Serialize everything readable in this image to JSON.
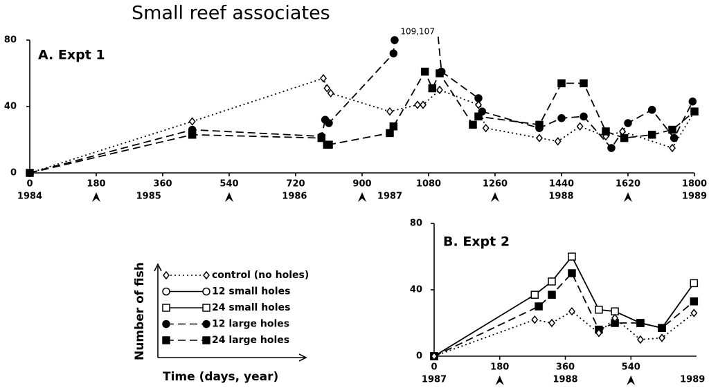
{
  "title": "Small reef associates",
  "chart_data": [
    {
      "type": "line",
      "title": "A. Expt 1",
      "xlim": [
        0,
        1800
      ],
      "ylim": [
        0,
        80
      ],
      "xticks": [
        0,
        180,
        360,
        540,
        720,
        900,
        1080,
        1260,
        1440,
        1620,
        1800
      ],
      "yticks": [
        0,
        40,
        80
      ],
      "year_ticks": [
        {
          "value": 0,
          "label": "1984"
        },
        {
          "value": 322,
          "label": "1985"
        },
        {
          "value": 717,
          "label": "1986"
        },
        {
          "value": 975,
          "label": "1987"
        },
        {
          "value": 1439,
          "label": "1988"
        },
        {
          "value": 1800,
          "label": "1989"
        }
      ],
      "arrows": [
        180,
        540,
        900,
        1260,
        1620
      ],
      "annotation": "109,107",
      "series": [
        {
          "name": "control (no holes)",
          "marker": "diamond-open",
          "dash": "dotted",
          "color": "#000000",
          "x": [
            0,
            440,
            795,
            805,
            815,
            975,
            1050,
            1065,
            1110,
            1215,
            1235,
            1380,
            1430,
            1490,
            1560,
            1605,
            1740,
            1800
          ],
          "values": [
            0,
            31,
            57,
            51,
            48,
            37,
            41,
            41,
            50,
            41,
            27,
            21,
            19,
            28,
            22,
            25,
            15,
            37
          ]
        },
        {
          "name": "12 large holes",
          "marker": "circle-filled",
          "dash": "dashed",
          "color": "#000000",
          "x": [
            0,
            440,
            790,
            800,
            810,
            985,
            988,
            1000,
            1095,
            1115,
            1215,
            1225,
            1380,
            1440,
            1500,
            1575,
            1620,
            1685,
            1745,
            1795
          ],
          "values": [
            0,
            26,
            22,
            32,
            30,
            72,
            80,
            109,
            107,
            61,
            45,
            37,
            27,
            33,
            34,
            15,
            30,
            38,
            21,
            43
          ]
        },
        {
          "name": "24 large holes",
          "marker": "square-filled",
          "dash": "dashed",
          "color": "#000000",
          "x": [
            0,
            440,
            790,
            805,
            810,
            975,
            985,
            1070,
            1090,
            1110,
            1200,
            1215,
            1380,
            1440,
            1500,
            1560,
            1610,
            1685,
            1740,
            1800
          ],
          "values": [
            0,
            23,
            21,
            17,
            17,
            24,
            28,
            61,
            51,
            60,
            29,
            34,
            29,
            54,
            54,
            25,
            21,
            23,
            26,
            37
          ]
        }
      ]
    },
    {
      "type": "line",
      "title": "B. Expt 2",
      "xlim": [
        0,
        720
      ],
      "ylim": [
        0,
        80
      ],
      "xticks": [
        0,
        180,
        360,
        540
      ],
      "yticks": [
        0,
        40,
        80
      ],
      "year_ticks": [
        {
          "value": 0,
          "label": "1987"
        },
        {
          "value": 360,
          "label": "1988"
        },
        {
          "value": 709,
          "label": "1989"
        }
      ],
      "arrows": [
        180,
        540
      ],
      "series": [
        {
          "name": "24 small holes",
          "marker": "square-open",
          "dash": "solid",
          "color": "#000000",
          "x": [
            0,
            276,
            323,
            378,
            452,
            496,
            566,
            625,
            713
          ],
          "values": [
            0,
            37,
            45,
            60,
            28,
            27,
            20,
            17,
            44
          ]
        },
        {
          "name": "24 large holes",
          "marker": "square-filled",
          "dash": "dashed",
          "color": "#000000",
          "x": [
            0,
            287,
            323,
            378,
            452,
            496,
            566,
            625,
            713
          ],
          "values": [
            0,
            30,
            37,
            50,
            16,
            20,
            20,
            17,
            33
          ]
        },
        {
          "name": "control (no holes)",
          "marker": "diamond-open",
          "dash": "dotted",
          "color": "#000000",
          "x": [
            0,
            276,
            323,
            378,
            452,
            496,
            566,
            625,
            713
          ],
          "values": [
            0,
            22,
            20,
            27,
            14,
            23,
            10,
            11,
            26
          ]
        }
      ]
    }
  ],
  "legend": {
    "y_label": "Number of fish",
    "x_label": "Time (days, year)",
    "entries": [
      {
        "name": "control (no holes)",
        "marker": "diamond-open",
        "dash": "dotted"
      },
      {
        "name": "12 small holes",
        "marker": "circle-open",
        "dash": "solid"
      },
      {
        "name": "24 small holes",
        "marker": "square-open",
        "dash": "solid"
      },
      {
        "name": "12 large holes",
        "marker": "circle-filled",
        "dash": "dashed"
      },
      {
        "name": "24 large holes",
        "marker": "square-filled",
        "dash": "dashed"
      }
    ]
  }
}
